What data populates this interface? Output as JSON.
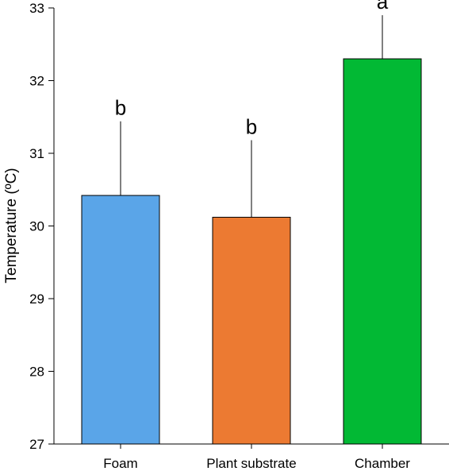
{
  "chart_data": {
    "type": "bar",
    "title": "",
    "xlabel": "",
    "ylabel": "Temperature (ºC)",
    "ylim": [
      27,
      33
    ],
    "yticks": [
      27,
      28,
      29,
      30,
      31,
      32,
      33
    ],
    "categories": [
      "Foam",
      "Plant substrate",
      "Chamber"
    ],
    "values": [
      30.42,
      30.12,
      32.3
    ],
    "errors": [
      1.02,
      1.06,
      0.6
    ],
    "significance": [
      "b",
      "b",
      "a"
    ],
    "colors": [
      "#5aa5e8",
      "#ec7a32",
      "#02b934"
    ],
    "grid": false,
    "legend": "none"
  }
}
